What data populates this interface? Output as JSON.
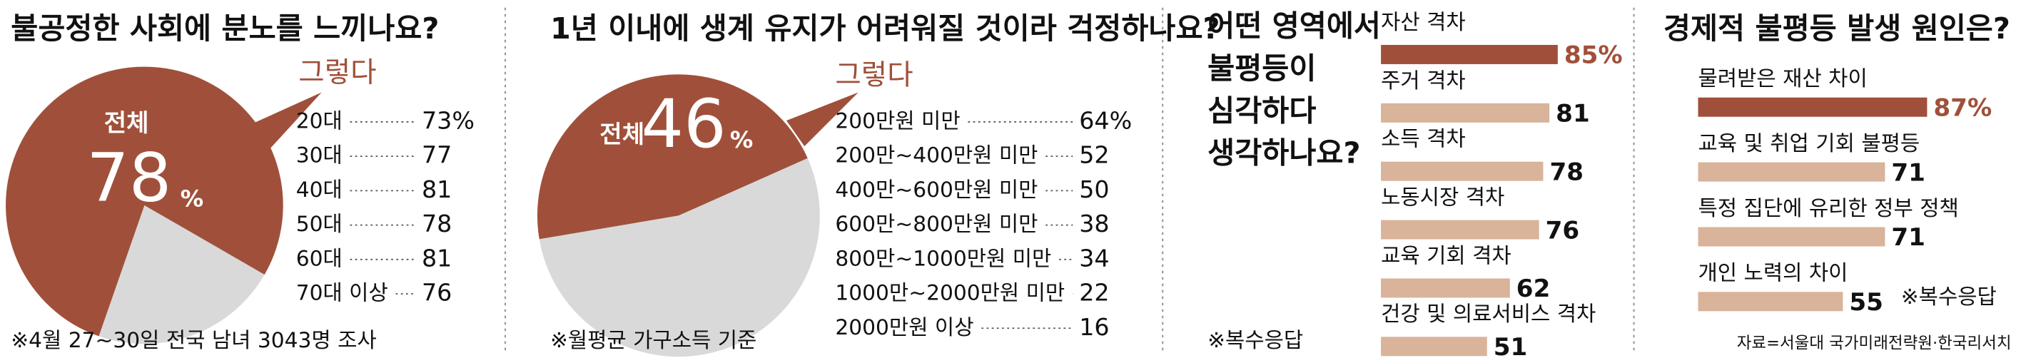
{
  "chart_data": [
    {
      "type": "pie",
      "title": "불공정한 사회에 분노를 느끼나요?",
      "callout": "그렇다",
      "total_label": "전체",
      "total": 78,
      "total_unit": "%",
      "colors": [
        "#a0503a",
        "#d9d9d9"
      ],
      "breakdown": {
        "categories": [
          "20대",
          "30대",
          "40대",
          "50대",
          "60대",
          "70대 이상"
        ],
        "values": [
          73,
          77,
          81,
          78,
          81,
          76
        ],
        "value_labels": [
          "73%",
          "77",
          "81",
          "78",
          "81",
          "76"
        ]
      },
      "note": "※4월 27~30일 전국 남녀 3043명 조사"
    },
    {
      "type": "pie",
      "title": "1년 이내에 생계 유지가 어려워질 것이라 걱정하나요?",
      "callout": "그렇다",
      "total_label": "전체",
      "total": 46,
      "total_unit": "%",
      "colors": [
        "#a0503a",
        "#d9d9d9"
      ],
      "breakdown": {
        "categories": [
          "200만원 미만",
          "200만~400만원 미만",
          "400만~600만원 미만",
          "600만~800만원 미만",
          "800만~1000만원 미만",
          "1000만~2000만원 미만",
          "2000만원 이상"
        ],
        "values": [
          64,
          52,
          50,
          38,
          34,
          22,
          16
        ],
        "value_labels": [
          "64%",
          "52",
          "50",
          "38",
          "34",
          "22",
          "16"
        ]
      },
      "note": "※월평균 가구소득 기준"
    },
    {
      "type": "bar",
      "title_lines": [
        "어떤 영역에서",
        "불평등이",
        "심각하다",
        "생각하나요?"
      ],
      "categories": [
        "자산 격차",
        "주거 격차",
        "소득 격차",
        "노동시장 격차",
        "교육 기회 격차",
        "건강 및 의료서비스 격차"
      ],
      "values": [
        85,
        81,
        78,
        76,
        62,
        51
      ],
      "value_labels": [
        "85%",
        "81",
        "78",
        "76",
        "62",
        "51"
      ],
      "colors": [
        "#a0503a",
        "#d9b39a",
        "#d9b39a",
        "#d9b39a",
        "#d9b39a",
        "#d9b39a"
      ],
      "note": "※복수응답"
    },
    {
      "type": "bar",
      "title_lines": [
        "경제적 불평등 발생 원인은?"
      ],
      "categories": [
        "물려받은 재산 차이",
        "교육 및 취업 기회 불평등",
        "특정 집단에 유리한 정부 정책",
        "개인 노력의 차이"
      ],
      "values": [
        87,
        71,
        71,
        55
      ],
      "value_labels": [
        "87%",
        "71",
        "71",
        "55"
      ],
      "colors": [
        "#a0503a",
        "#d9b39a",
        "#d9b39a",
        "#d9b39a"
      ],
      "note": "※복수응답"
    }
  ],
  "source": "자료=서울대 국가미래전략원·한국리서치"
}
